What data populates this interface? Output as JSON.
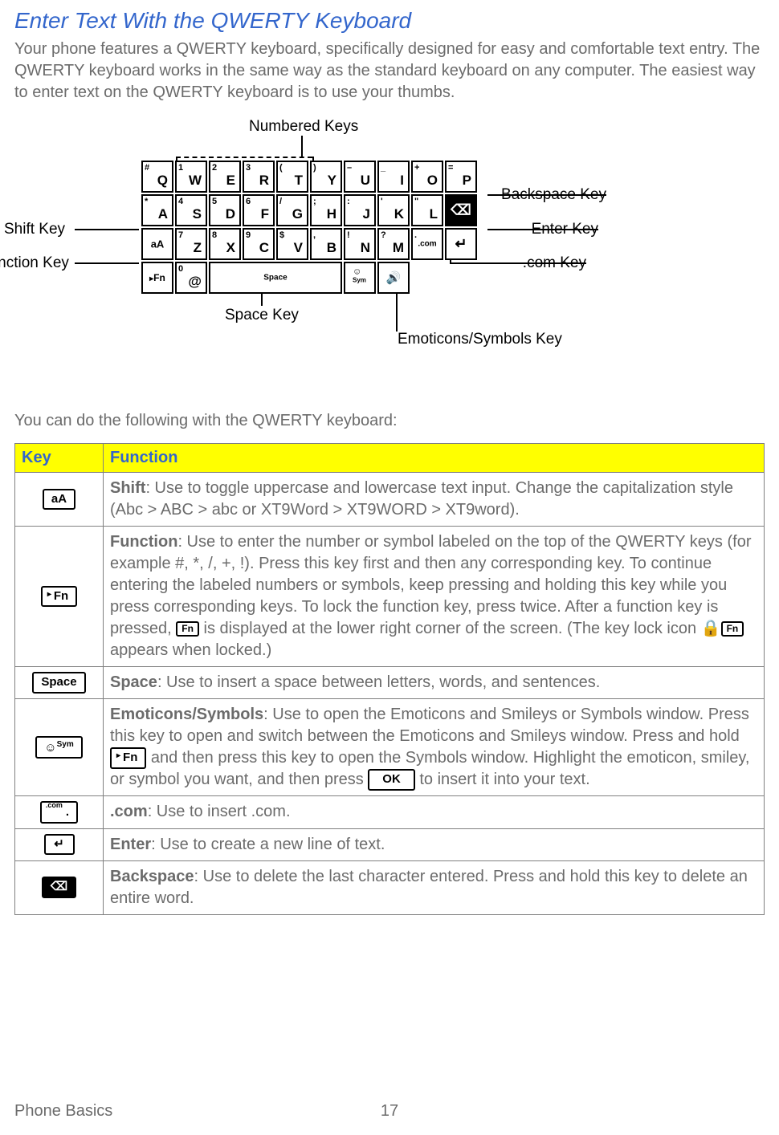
{
  "title": "Enter Text With the QWERTY Keyboard",
  "intro": "Your phone features a QWERTY keyboard, specifically designed for easy and comfortable text entry. The QWERTY keyboard works in the same way as the standard keyboard on any computer. The easiest way to enter text on the QWERTY keyboard is to use your thumbs.",
  "lead": "You can do the following with the QWERTY keyboard:",
  "footer_section": "Phone Basics",
  "footer_page": "17",
  "colors": {
    "heading": "#3366cc",
    "body_text": "#6b6b6b",
    "table_header_bg": "#ffff00",
    "border": "#808080",
    "black": "#000000"
  },
  "diagram_labels": {
    "numbered_keys": "Numbered Keys",
    "backspace": "Backspace Key",
    "shift": "Shift Key",
    "enter": "Enter Key",
    "function": "Function Key",
    "com": ".com Key",
    "space": "Space Key",
    "emoticons": "Emoticons/Symbols Key"
  },
  "keyboard": {
    "rows": [
      [
        {
          "tl": "#",
          "main": "Q"
        },
        {
          "tl": "1",
          "main": "W"
        },
        {
          "tl": "2",
          "main": "E"
        },
        {
          "tl": "3",
          "main": "R"
        },
        {
          "tl": "(",
          "main": "T"
        },
        {
          "tl": ")",
          "main": "Y"
        },
        {
          "tl": "–",
          "main": "U"
        },
        {
          "tl": "_",
          "main": "I"
        },
        {
          "tl": "+",
          "main": "O"
        },
        {
          "tl": "=",
          "main": "P"
        }
      ],
      [
        {
          "tl": "*",
          "main": "A"
        },
        {
          "tl": "4",
          "main": "S"
        },
        {
          "tl": "5",
          "main": "D"
        },
        {
          "tl": "6",
          "main": "F"
        },
        {
          "tl": "/",
          "main": "G"
        },
        {
          "tl": ";",
          "main": "H"
        },
        {
          "tl": ":",
          "main": "J"
        },
        {
          "tl": "'",
          "main": "K"
        },
        {
          "tl": "\"",
          "main": "L"
        },
        {
          "type": "backspace"
        }
      ],
      [
        {
          "ctr": "aA"
        },
        {
          "tl": "7",
          "main": "Z"
        },
        {
          "tl": "8",
          "main": "X"
        },
        {
          "tl": "9",
          "main": "C"
        },
        {
          "tl": "$",
          "main": "V"
        },
        {
          "tl": ",",
          "main": "B"
        },
        {
          "tl": "!",
          "main": "N"
        },
        {
          "tl": "?",
          "main": "M"
        },
        {
          "ctr": ".com",
          "tl": "."
        },
        {
          "type": "enter"
        }
      ],
      [
        {
          "ctr": "▸Fn",
          "wide": false,
          "type": "fn"
        },
        {
          "tl": "0",
          "main": "@"
        },
        {
          "ctr": "Space",
          "type": "space"
        },
        {
          "ctr": "☺Sym",
          "type": "sym"
        },
        {
          "type": "speaker"
        }
      ]
    ]
  },
  "table": {
    "columns": [
      "Key",
      "Function"
    ],
    "rows": [
      {
        "key_html": "<span class='keycap'>aA</span>",
        "lead": "Shift",
        "text": ": Use to toggle uppercase and lowercase text input. Change the capitalization style (Abc > ABC > abc or XT9Word > XT9WORD > XT9word)."
      },
      {
        "key_html": "<span class='keycap'><span class='corner'>▸</span>Fn</span>",
        "lead": "Function",
        "text_parts": [
          ": Use to enter the number or symbol labeled on the top of the QWERTY keys (for example #, *, /, +, !). Press this key first and then any corresponding key. To continue entering the labeled numbers or symbols, keep pressing and holding this key while you press corresponding keys. To lock the function key, press twice. After a function key is pressed, ",
          "<span class='keycap small'>Fn</span>",
          " is displayed at the lower right corner of the screen. (The key lock icon ",
          "🔒<span class='keycap small'>Fn</span>",
          " appears when locked.)"
        ]
      },
      {
        "key_html": "<span class='keycap'>Space</span>",
        "lead": "Space",
        "text": ": Use to insert a space between letters, words, and sentences."
      },
      {
        "key_html": "<span class='keycap'>☺<sup style='font-size:10px'>Sym</sup></span>",
        "lead": "Emoticons/Symbols",
        "text_parts": [
          ": Use to open the Emoticons and Smileys or Symbols window. Press this key to open and switch between the Emoticons and Smileys window. Press and hold ",
          "<span class='keycap'><span class='corner'>▸</span>Fn</span>",
          " and then press this key to open the Symbols window. Highlight the emoticon, smiley, or symbol you want, and then press ",
          "<span class='keycap' style='padding:3px 16px'>OK</span>",
          " to insert it into your text."
        ]
      },
      {
        "key_html": "<span class='keycap'><sup style='font-size:9px;position:relative;top:-4px;left:-4px'>.com</sup>.</span>",
        "lead": ".com",
        "text": ": Use to insert .com."
      },
      {
        "key_html": "<span class='keycap'>↵</span>",
        "lead": "Enter",
        "text": ": Use to create a new line of text."
      },
      {
        "key_html": "<span class='keycap dark'>⌫</span>",
        "lead": "Backspace",
        "text": ": Use to delete the last character entered. Press and hold this key to delete an entire word."
      }
    ]
  }
}
